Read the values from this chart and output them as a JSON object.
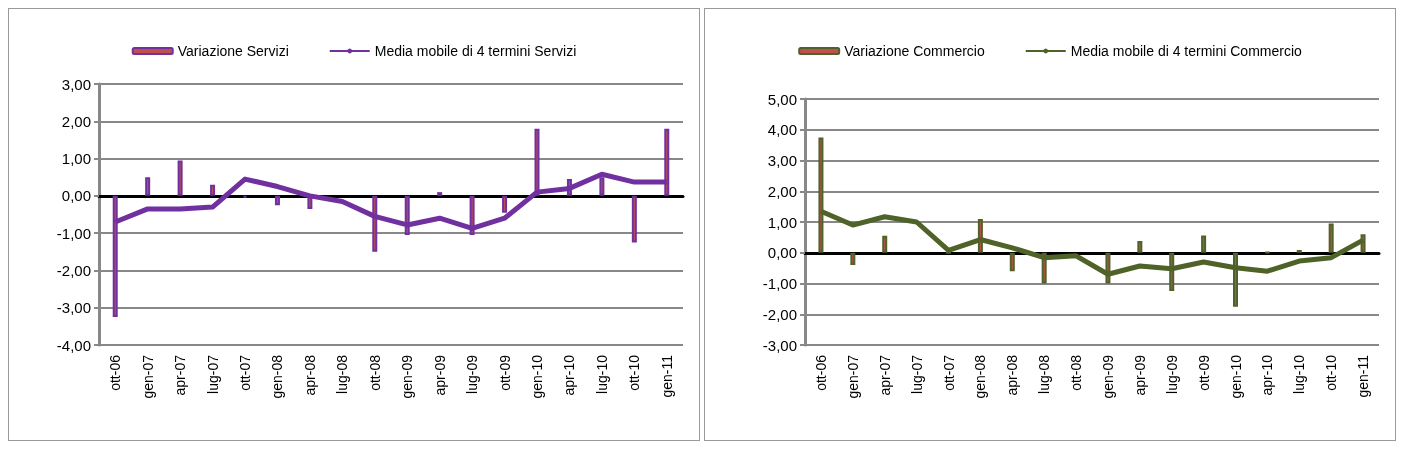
{
  "chart_data": [
    {
      "type": "bar",
      "categories": [
        "ott-06",
        "gen-07",
        "apr-07",
        "lug-07",
        "ott-07",
        "gen-08",
        "apr-08",
        "lug-08",
        "ott-08",
        "gen-09",
        "apr-09",
        "lug-09",
        "ott-09",
        "gen-10",
        "apr-10",
        "lug-10",
        "ott-10",
        "gen-11"
      ],
      "series": [
        {
          "name": "Variazione Servizi",
          "color": "#7030a0",
          "values": [
            -3.25,
            0.5,
            0.95,
            0.3,
            -0.05,
            -0.25,
            -0.35,
            null,
            -1.5,
            -1.05,
            0.1,
            -1.05,
            -0.45,
            1.8,
            0.45,
            0.5,
            -1.25,
            1.8
          ]
        },
        {
          "name": "Media mobile di 4 termini Servizi",
          "type": "line",
          "color": "#7030a0",
          "values": [
            -0.7,
            -0.35,
            -0.35,
            -0.3,
            0.45,
            0.25,
            0.0,
            -0.15,
            -0.55,
            -0.78,
            -0.6,
            -0.87,
            -0.6,
            0.1,
            0.2,
            0.58,
            0.37,
            0.37
          ]
        }
      ],
      "ylim": [
        -4,
        3
      ],
      "yticks": [
        {
          "value": -4,
          "label": "-4,00"
        },
        {
          "value": -3,
          "label": "-3,00"
        },
        {
          "value": -2,
          "label": "-2,00"
        },
        {
          "value": -1,
          "label": "-1,00"
        },
        {
          "value": 0,
          "label": "0,00"
        },
        {
          "value": 1,
          "label": "1,00"
        },
        {
          "value": 2,
          "label": "2,00"
        },
        {
          "value": 3,
          "label": "3,00"
        }
      ],
      "grid": "y",
      "legend": "top",
      "marker": "none"
    },
    {
      "type": "bar",
      "categories": [
        "ott-06",
        "gen-07",
        "apr-07",
        "lug-07",
        "ott-07",
        "gen-08",
        "apr-08",
        "lug-08",
        "ott-08",
        "gen-09",
        "apr-09",
        "lug-09",
        "ott-09",
        "gen-10",
        "apr-10",
        "lug-10",
        "ott-10",
        "gen-11"
      ],
      "series": [
        {
          "name": "Variazione Commercio",
          "color": "#4f6228",
          "values": [
            3.75,
            -0.4,
            0.55,
            null,
            0.0,
            1.1,
            -0.6,
            -1.0,
            null,
            -1.0,
            0.38,
            -1.24,
            0.56,
            -1.76,
            0.02,
            0.09,
            0.95,
            0.6
          ]
        },
        {
          "name": "Media mobile di 4 termini Commercio",
          "type": "line",
          "color": "#4f6228",
          "values": [
            1.35,
            0.9,
            1.17,
            1.0,
            0.08,
            0.43,
            0.16,
            -0.16,
            -0.1,
            -0.7,
            -0.43,
            -0.52,
            -0.3,
            -0.49,
            -0.6,
            -0.27,
            -0.16,
            0.41
          ]
        }
      ],
      "ylim": [
        -3,
        5
      ],
      "yticks": [
        {
          "value": -3,
          "label": "-3,00"
        },
        {
          "value": -2,
          "label": "-2,00"
        },
        {
          "value": -1,
          "label": "-1,00"
        },
        {
          "value": 0,
          "label": "0,00"
        },
        {
          "value": 1,
          "label": "1,00"
        },
        {
          "value": 2,
          "label": "2,00"
        },
        {
          "value": 3,
          "label": "3,00"
        },
        {
          "value": 4,
          "label": "4,00"
        },
        {
          "value": 5,
          "label": "5,00"
        }
      ],
      "grid": "y",
      "legend": "top",
      "marker": "none"
    }
  ]
}
